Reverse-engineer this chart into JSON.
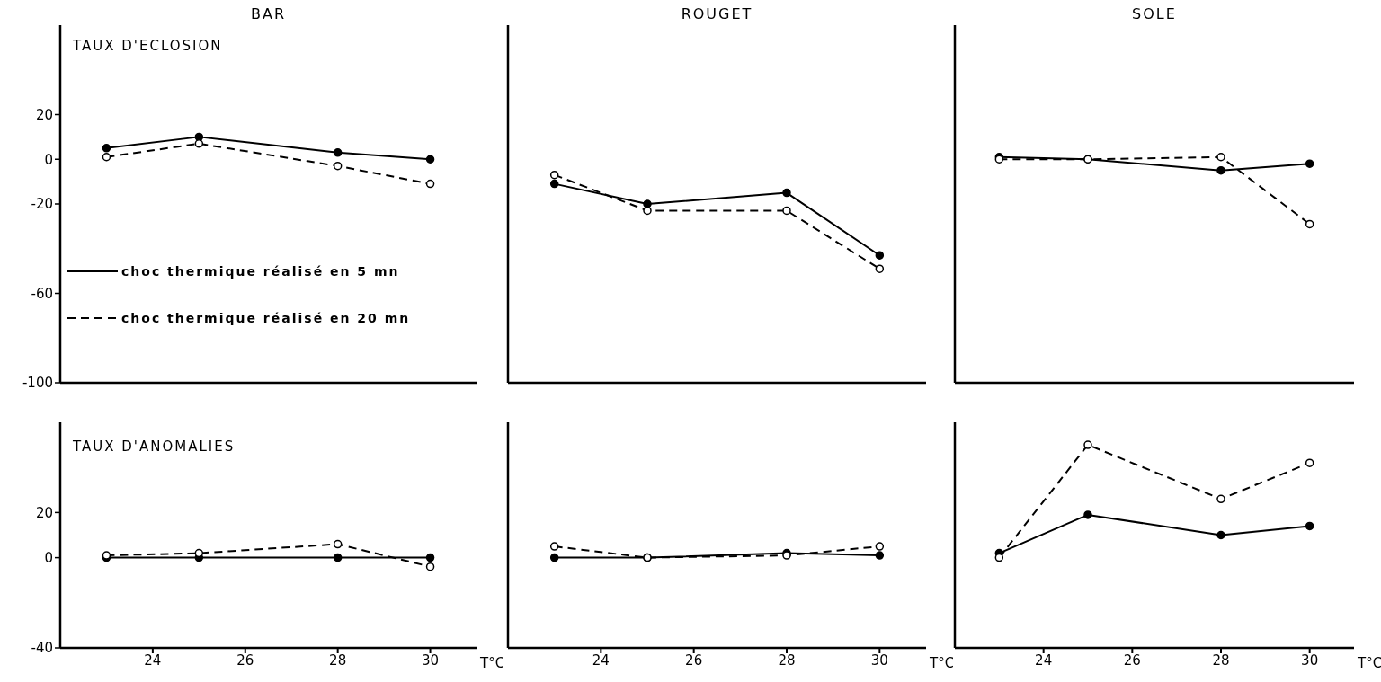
{
  "chart_data": [
    {
      "type": "line",
      "title": "BAR",
      "ylabel": "TAUX D'ECLOSION",
      "x": [
        23,
        25,
        28,
        30
      ],
      "xlim": [
        22,
        31
      ],
      "xticks": [
        24,
        26,
        28,
        30
      ],
      "ylim": [
        -100,
        60
      ],
      "yticks": [
        20,
        0,
        -20,
        -60,
        -100
      ],
      "tick_labels": "y",
      "marker": "circle",
      "legend": "bottom left",
      "series": [
        {
          "name": "choc thermique réalisé en 5 mn",
          "color": "#000000",
          "line_style": "solid",
          "values": [
            5,
            10,
            3,
            0
          ]
        },
        {
          "name": "choc thermique réalisé en 20 mn",
          "color": "#000000",
          "line_style": "dashed",
          "values": [
            1,
            7,
            -3,
            -11
          ]
        }
      ]
    },
    {
      "type": "line",
      "title": "ROUGET",
      "x": [
        23,
        25,
        28,
        30
      ],
      "xlim": [
        22,
        31
      ],
      "xticks": [
        24,
        26,
        28,
        30
      ],
      "ylim": [
        -100,
        60
      ],
      "yticks": [
        20,
        0,
        -20,
        -60,
        -100
      ],
      "tick_labels": false,
      "marker": "circle",
      "series": [
        {
          "color": "#000000",
          "line_style": "solid",
          "values": [
            -11,
            -20,
            -15,
            -43
          ]
        },
        {
          "color": "#000000",
          "line_style": "dashed",
          "values": [
            -7,
            -23,
            -23,
            -49
          ]
        }
      ]
    },
    {
      "type": "line",
      "title": "SOLE",
      "x": [
        23,
        25,
        28,
        30
      ],
      "xlim": [
        22,
        31
      ],
      "xticks": [
        24,
        26,
        28,
        30
      ],
      "ylim": [
        -100,
        60
      ],
      "yticks": [
        20,
        0,
        -20,
        -60,
        -100
      ],
      "tick_labels": false,
      "marker": "circle",
      "series": [
        {
          "color": "#000000",
          "line_style": "solid",
          "values": [
            1,
            0,
            -5,
            -2
          ]
        },
        {
          "color": "#000000",
          "line_style": "dashed",
          "values": [
            0,
            0,
            1,
            -29
          ]
        }
      ]
    },
    {
      "type": "line",
      "ylabel": "TAUX D'ANOMALIES",
      "xlabel": "T°C",
      "x": [
        23,
        25,
        28,
        30
      ],
      "xlim": [
        22,
        31
      ],
      "xticks": [
        24,
        26,
        28,
        30
      ],
      "ylim": [
        -40,
        60
      ],
      "yticks": [
        20,
        0,
        -40
      ],
      "marker": "circle",
      "series": [
        {
          "color": "#000000",
          "line_style": "solid",
          "values": [
            0,
            0,
            0,
            0
          ]
        },
        {
          "color": "#000000",
          "line_style": "dashed",
          "values": [
            1,
            2,
            6,
            -4
          ]
        }
      ]
    },
    {
      "type": "line",
      "xlabel": "T°C",
      "x": [
        23,
        25,
        28,
        30
      ],
      "xlim": [
        22,
        31
      ],
      "xticks": [
        24,
        26,
        28,
        30
      ],
      "ylim": [
        -40,
        60
      ],
      "yticks": [
        20,
        0,
        -40
      ],
      "tick_labels": "x",
      "marker": "circle",
      "series": [
        {
          "color": "#000000",
          "line_style": "solid",
          "values": [
            0,
            0,
            2,
            1
          ]
        },
        {
          "color": "#000000",
          "line_style": "dashed",
          "values": [
            5,
            0,
            1,
            5
          ]
        }
      ]
    },
    {
      "type": "line",
      "xlabel": "T°C",
      "x": [
        23,
        25,
        28,
        30
      ],
      "xlim": [
        22,
        31
      ],
      "xticks": [
        24,
        26,
        28,
        30
      ],
      "ylim": [
        -40,
        60
      ],
      "yticks": [
        20,
        0,
        -40
      ],
      "tick_labels": "x",
      "marker": "circle",
      "series": [
        {
          "color": "#000000",
          "line_style": "solid",
          "values": [
            2,
            19,
            10,
            14
          ]
        },
        {
          "color": "#000000",
          "line_style": "dashed",
          "values": [
            0,
            50,
            26,
            42
          ]
        }
      ]
    }
  ]
}
